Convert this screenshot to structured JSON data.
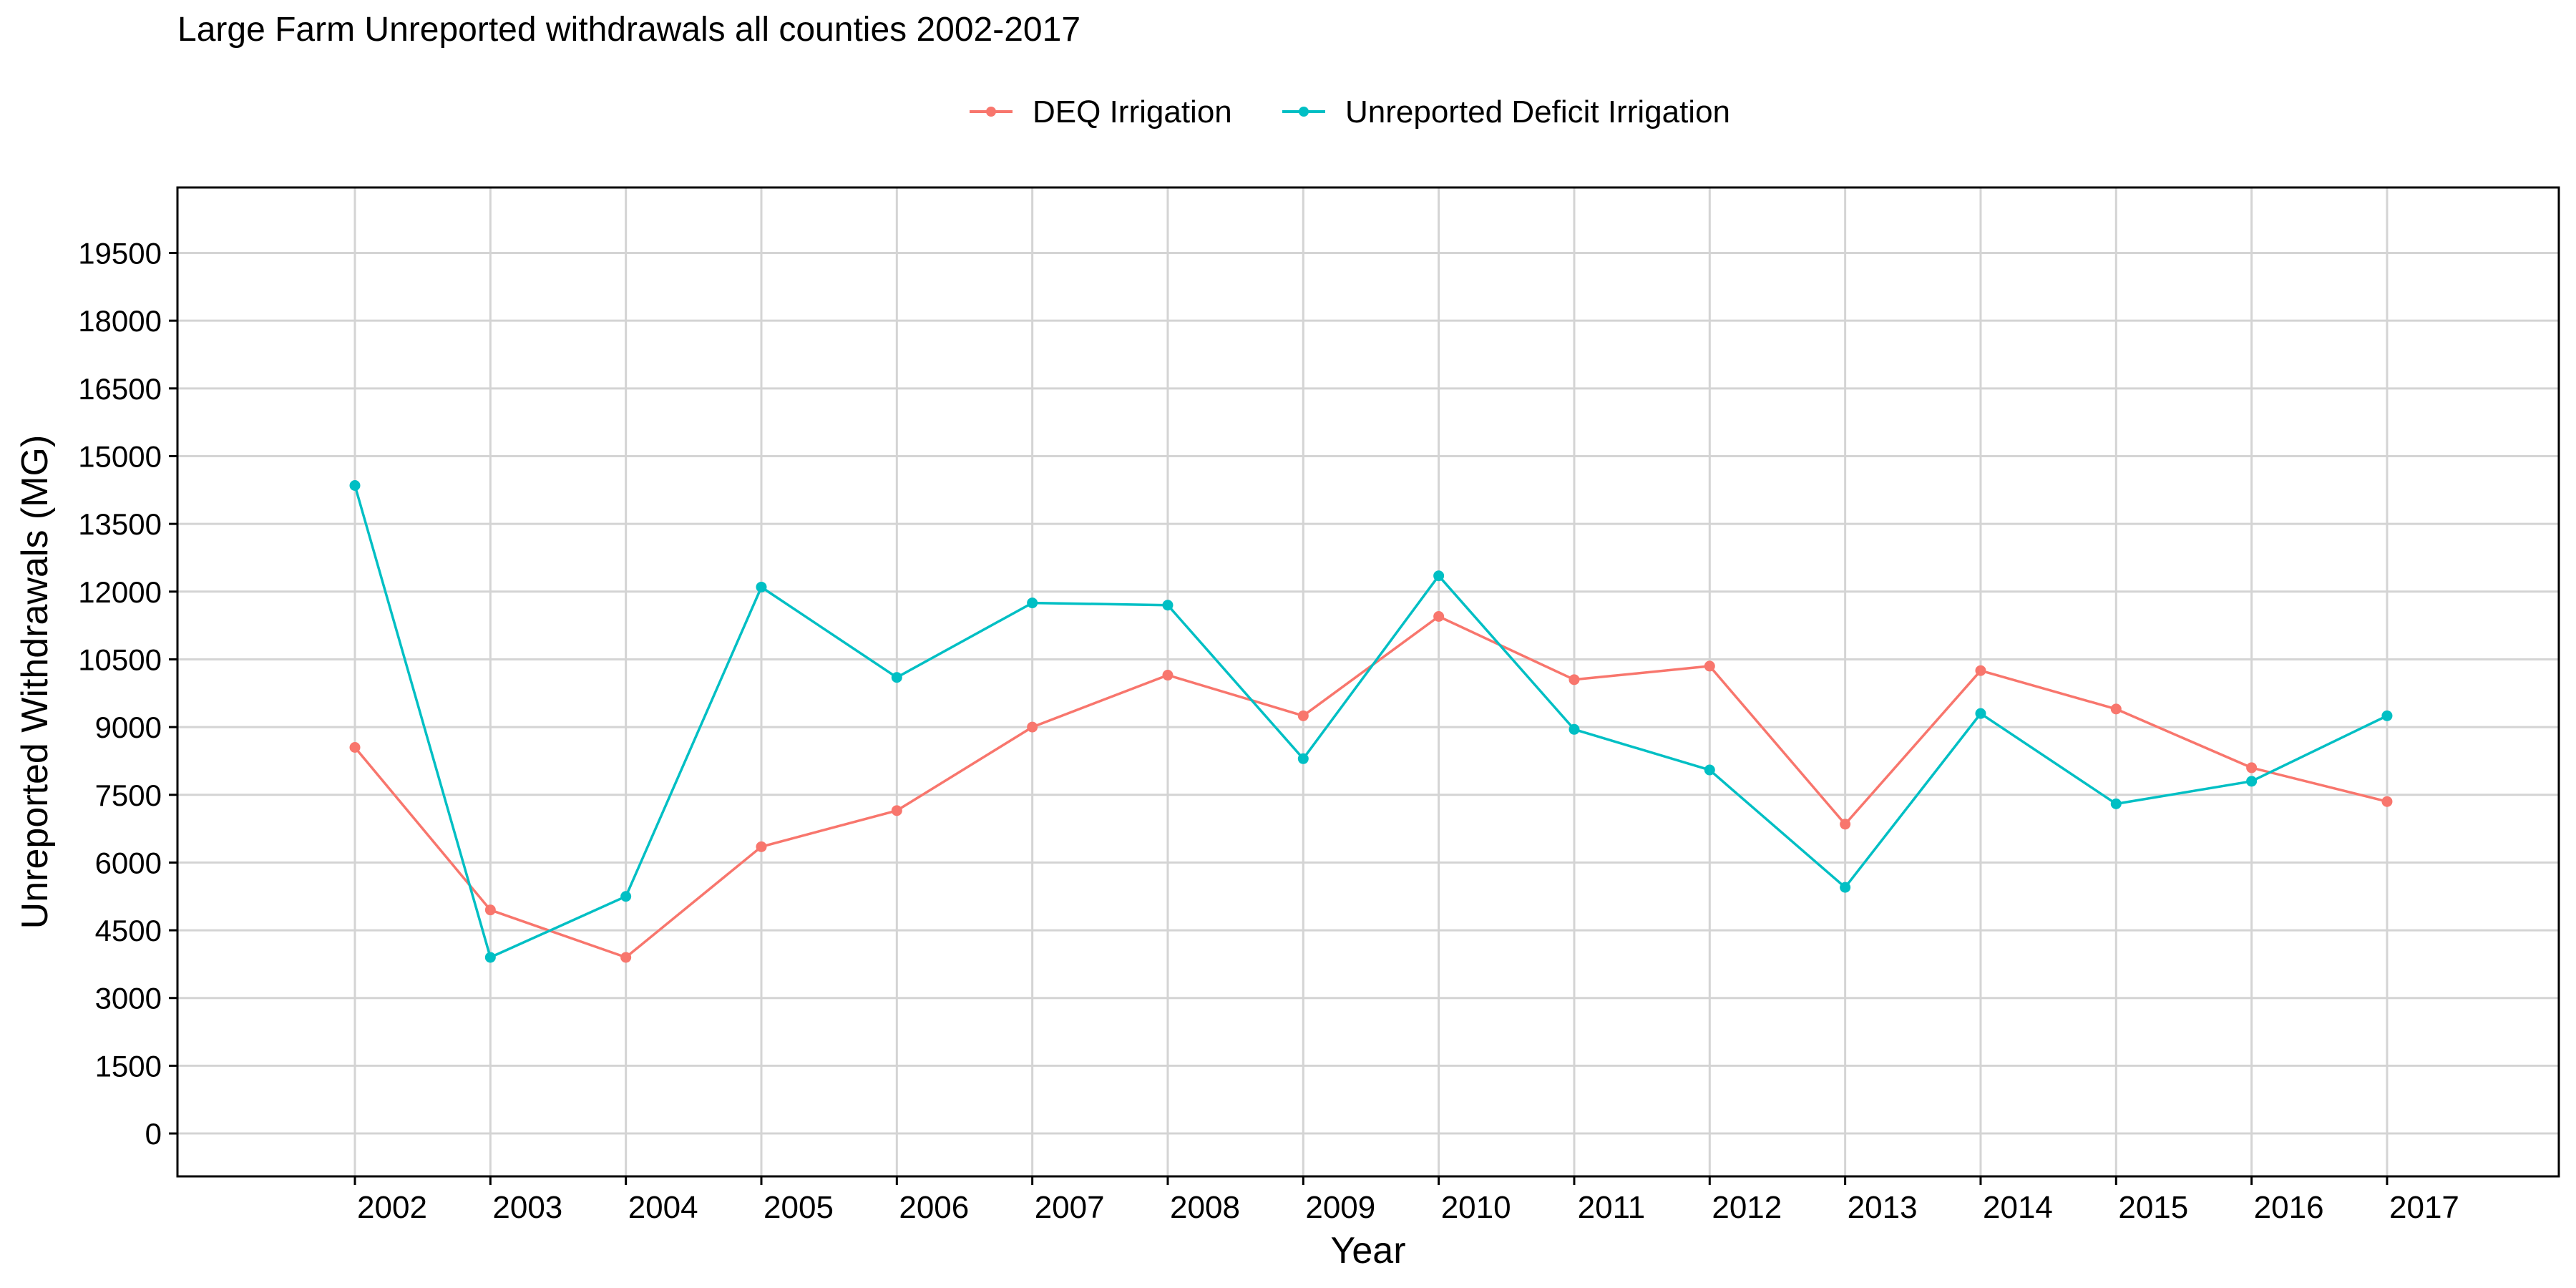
{
  "chart_data": {
    "type": "line",
    "title": "Large Farm Unreported withdrawals all counties 2002-2017",
    "xlabel": "Year",
    "ylabel": "Unreported Withdrawals (MG)",
    "x": [
      "2002",
      "2003",
      "2004",
      "2005",
      "2006",
      "2007",
      "2008",
      "2009",
      "2010",
      "2011",
      "2012",
      "2013",
      "2014",
      "2015",
      "2016",
      "2017"
    ],
    "yticks": [
      0,
      1500,
      3000,
      4500,
      6000,
      7500,
      9000,
      10500,
      12000,
      13500,
      15000,
      16500,
      18000,
      19500
    ],
    "ylim": [
      -950,
      20950
    ],
    "grid": true,
    "legend_position": "top",
    "series": [
      {
        "name": "DEQ Irrigation",
        "color": "#F8766D",
        "values": [
          8550,
          4950,
          3900,
          6350,
          7150,
          9000,
          10150,
          9250,
          11450,
          10050,
          10350,
          6850,
          10250,
          9400,
          8100,
          7350
        ]
      },
      {
        "name": "Unreported Deficit Irrigation",
        "color": "#00BFC4",
        "values": [
          14350,
          3900,
          5250,
          12100,
          10100,
          11750,
          11700,
          8300,
          12350,
          8950,
          8050,
          5450,
          9300,
          7300,
          7800,
          9250
        ]
      }
    ]
  }
}
